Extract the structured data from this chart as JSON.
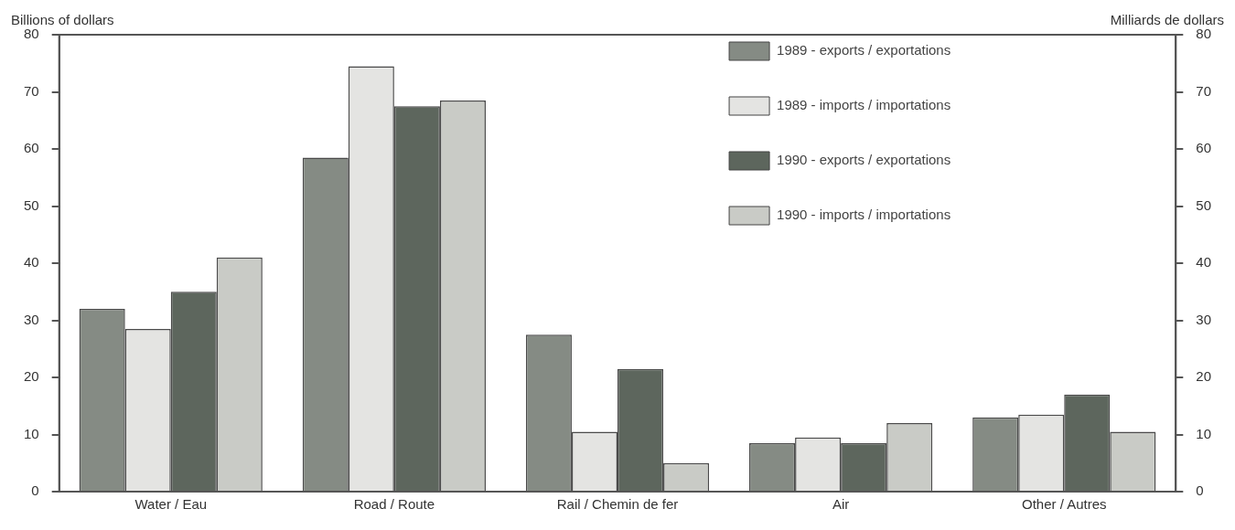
{
  "chart_data": {
    "type": "bar",
    "ylabel": "Billions of dollars",
    "y2label": "Milliards de dollars",
    "categories": [
      "Water / Eau",
      "Road / Route",
      "Rail / Chemin de fer",
      "Air",
      "Other / Autres"
    ],
    "series": [
      {
        "name": "1989 - exports / exportations",
        "color": "#858b84",
        "values": [
          32,
          58.5,
          27.5,
          8.5,
          13
        ]
      },
      {
        "name": "1989 - imports / importations",
        "color": "#e4e4e2",
        "values": [
          28.5,
          74.5,
          10.5,
          9.5,
          13.5
        ]
      },
      {
        "name": "1990 - exports / exportations",
        "color": "#5d665d",
        "values": [
          35,
          67.5,
          21.5,
          8.5,
          17
        ]
      },
      {
        "name": "1990 - imports / importations",
        "color": "#c9cbc6",
        "values": [
          41,
          68.5,
          5,
          12,
          10.5
        ]
      }
    ],
    "ylim": [
      0,
      80
    ],
    "yticks": [
      0,
      10,
      20,
      30,
      40,
      50,
      60,
      70,
      80
    ],
    "y2lim": [
      0,
      80
    ],
    "y2ticks": [
      0,
      10,
      20,
      30,
      40,
      50,
      60,
      70,
      80
    ],
    "grid": false,
    "legend": "top right"
  }
}
